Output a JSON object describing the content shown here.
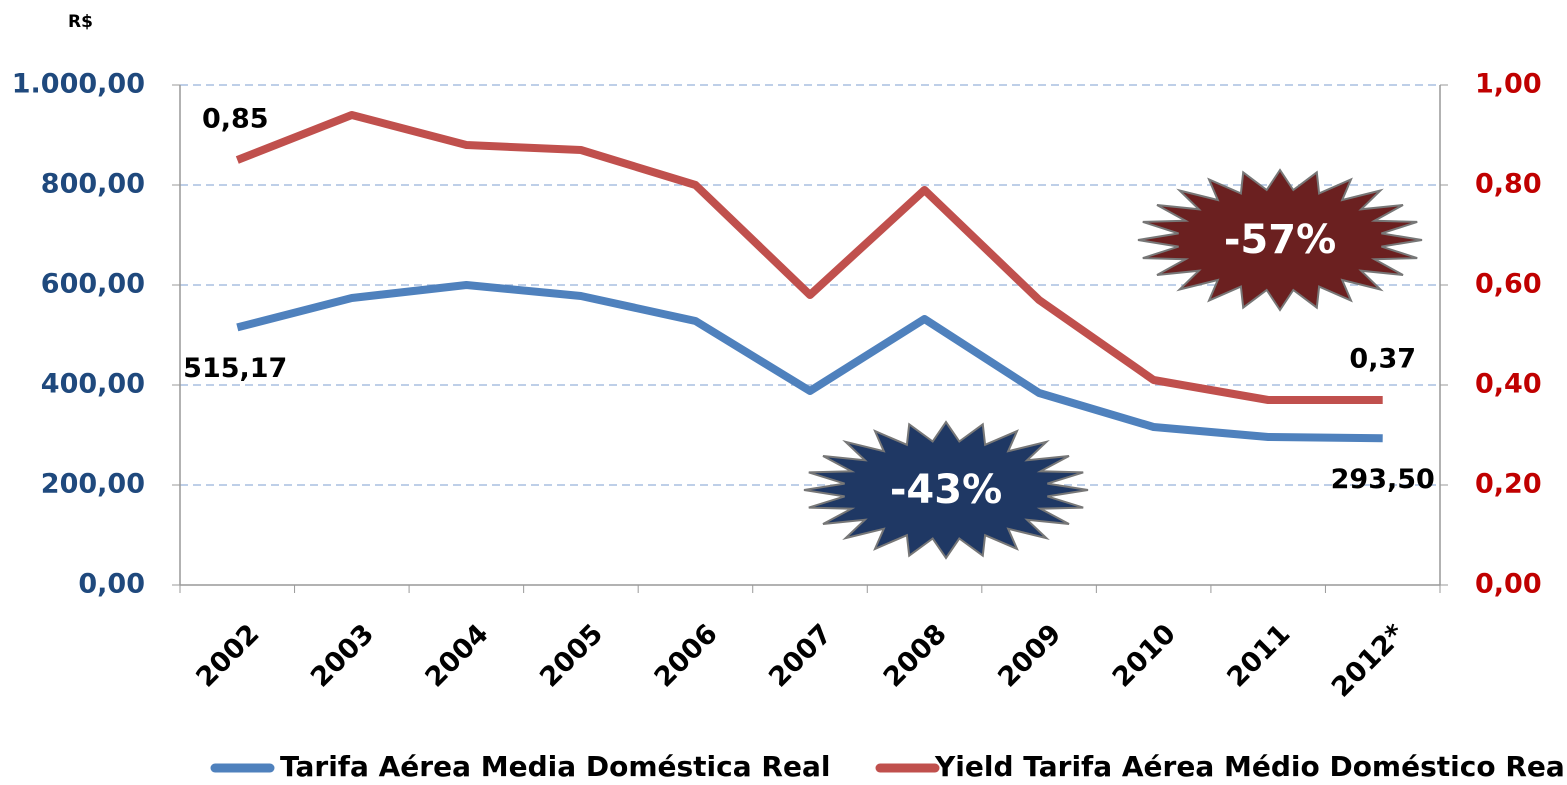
{
  "chart_data": {
    "type": "line",
    "annotations": [
      "R$",
      "-57%",
      "-43%"
    ],
    "categories": [
      "2002",
      "2003",
      "2004",
      "2005",
      "2006",
      "2007",
      "2008",
      "2009",
      "2010",
      "2011",
      "2012*"
    ],
    "series": [
      {
        "name": "Tarifa Aérea Media Doméstica Real",
        "color": "#4f81bd",
        "values": [
          515.17,
          574,
          600,
          578,
          528,
          388,
          532,
          384,
          316,
          296,
          293.5
        ],
        "value_labels": [
          "515,17",
          null,
          null,
          null,
          null,
          null,
          null,
          null,
          null,
          null,
          "293,50"
        ]
      },
      {
        "name": "Yield Tarifa Aérea Médio Doméstico Real",
        "color": "#c0504d",
        "axis": "y2",
        "values": [
          0.85,
          0.94,
          0.88,
          0.87,
          0.8,
          0.58,
          0.79,
          0.57,
          0.41,
          0.37,
          0.37
        ],
        "value_labels": [
          "0,85",
          null,
          null,
          null,
          null,
          null,
          null,
          null,
          null,
          null,
          "0,37"
        ]
      }
    ],
    "ylim": [
      0,
      1000
    ],
    "yticks": [
      {
        "value": 0,
        "label": "0,00"
      },
      {
        "value": 200,
        "label": "200,00"
      },
      {
        "value": 400,
        "label": "400,00"
      },
      {
        "value": 600,
        "label": "600,00"
      },
      {
        "value": 800,
        "label": "800,00"
      },
      {
        "value": 1000,
        "label": "1.000,00"
      }
    ],
    "y2lim": [
      0,
      1
    ],
    "y2ticks": [
      {
        "value": 0,
        "label": "0,00"
      },
      {
        "value": 0.2,
        "label": "0,20"
      },
      {
        "value": 0.4,
        "label": "0,40"
      },
      {
        "value": 0.6,
        "label": "0,60"
      },
      {
        "value": 0.8,
        "label": "0,80"
      },
      {
        "value": 1,
        "label": "1,00"
      }
    ],
    "grid": true
  }
}
